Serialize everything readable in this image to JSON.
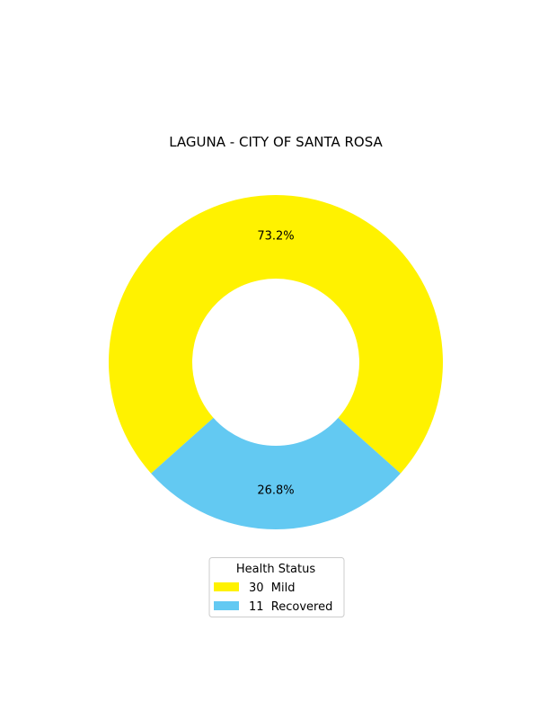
{
  "chart_data": {
    "type": "pie",
    "title": "LAGUNA - CITY OF SANTA ROSA",
    "donut": true,
    "slices": [
      {
        "label": "Mild",
        "value": 30,
        "percent_label": "73.2%",
        "color": "#fff200",
        "legend_text": "30  Mild"
      },
      {
        "label": "Recovered",
        "value": 11,
        "percent_label": "26.8%",
        "color": "#63c9f2",
        "legend_text": "11  Recovered"
      }
    ],
    "legend": {
      "title": "Health Status",
      "placement": "bottom-center"
    }
  }
}
